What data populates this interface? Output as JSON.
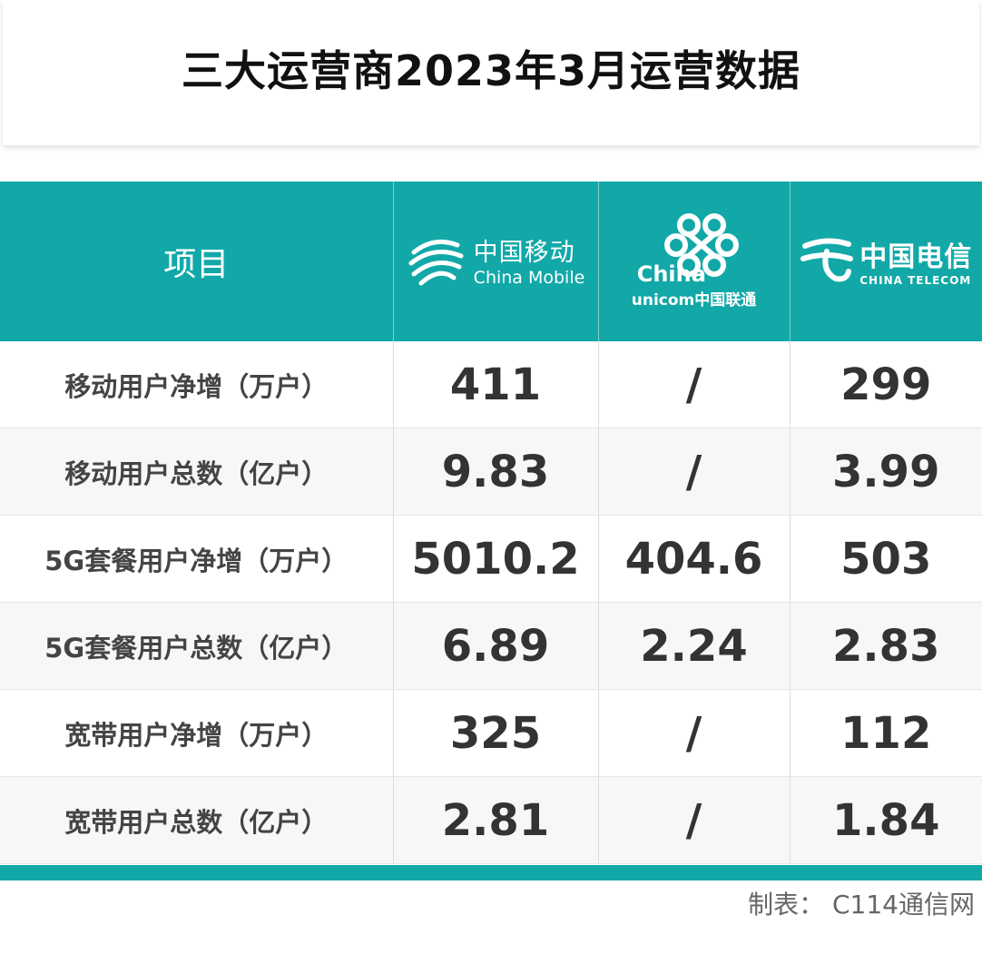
{
  "title": "三大运营商2023年3月运营数据",
  "header": {
    "label": "项目",
    "china_mobile": {
      "cn": "中国移动",
      "en": "China Mobile"
    },
    "china_unicom": {
      "line1": "China",
      "line2": "unicom",
      "cn": "中国联通"
    },
    "china_telecom": {
      "cn": "中国电信",
      "en": "CHINA TELECOM"
    }
  },
  "rows": [
    {
      "label": "移动用户净增（万户）",
      "mobile": "411",
      "unicom": "/",
      "telecom": "299"
    },
    {
      "label": "移动用户总数（亿户）",
      "mobile": "9.83",
      "unicom": "/",
      "telecom": "3.99"
    },
    {
      "label": "5G套餐用户净增（万户）",
      "mobile": "5010.2",
      "unicom": "404.6",
      "telecom": "503"
    },
    {
      "label": "5G套餐用户总数（亿户）",
      "mobile": "6.89",
      "unicom": "2.24",
      "telecom": "2.83"
    },
    {
      "label": "宽带用户净增（万户）",
      "mobile": "325",
      "unicom": "/",
      "telecom": "112"
    },
    {
      "label": "宽带用户总数（亿户）",
      "mobile": "2.81",
      "unicom": "/",
      "telecom": "1.84"
    }
  ],
  "footer": "制表： C114通信网",
  "colors": {
    "accent": "#12a8a8",
    "text": "#333333"
  }
}
